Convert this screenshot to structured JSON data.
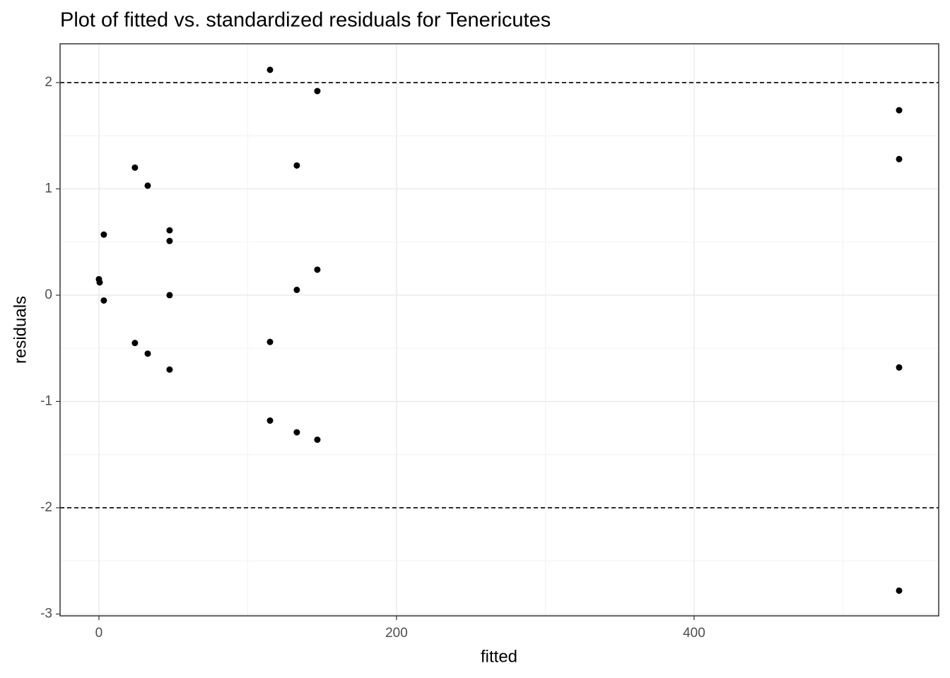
{
  "chart_data": {
    "type": "scatter",
    "title": "Plot of fitted vs. standardized residuals for Tenericutes",
    "x_label": "fitted",
    "y_label": "residuals",
    "x": [
      0,
      0.5,
      3.3,
      3.3,
      24.2,
      24.2,
      32.8,
      32.8,
      47.5,
      47.5,
      47.5,
      47.5,
      115,
      115,
      115,
      133,
      133,
      133,
      146.8,
      146.8,
      146.8,
      537.8,
      537.8,
      537.8,
      537.8
    ],
    "values": [
      0.15,
      0.12,
      0.57,
      -0.05,
      1.2,
      -0.45,
      1.03,
      -0.55,
      0.61,
      0.51,
      0.0,
      -0.7,
      2.12,
      -0.44,
      -1.18,
      1.22,
      0.05,
      -1.29,
      1.92,
      0.24,
      -1.36,
      1.74,
      1.28,
      -0.68,
      -2.78
    ],
    "color": "#000000",
    "xlim": [
      -26.1,
      564.4
    ],
    "ylim": [
      -3.017,
      2.365
    ],
    "xticks": [
      0,
      200,
      400
    ],
    "yticks": [
      -3,
      -2,
      -1,
      0,
      1,
      2
    ],
    "minor_xticks": [
      100,
      300,
      500
    ],
    "minor_yticks": [
      -2.5,
      -1.5,
      -0.5,
      0.5,
      1.5
    ],
    "hlines": [
      2,
      -2
    ],
    "grid": true
  }
}
